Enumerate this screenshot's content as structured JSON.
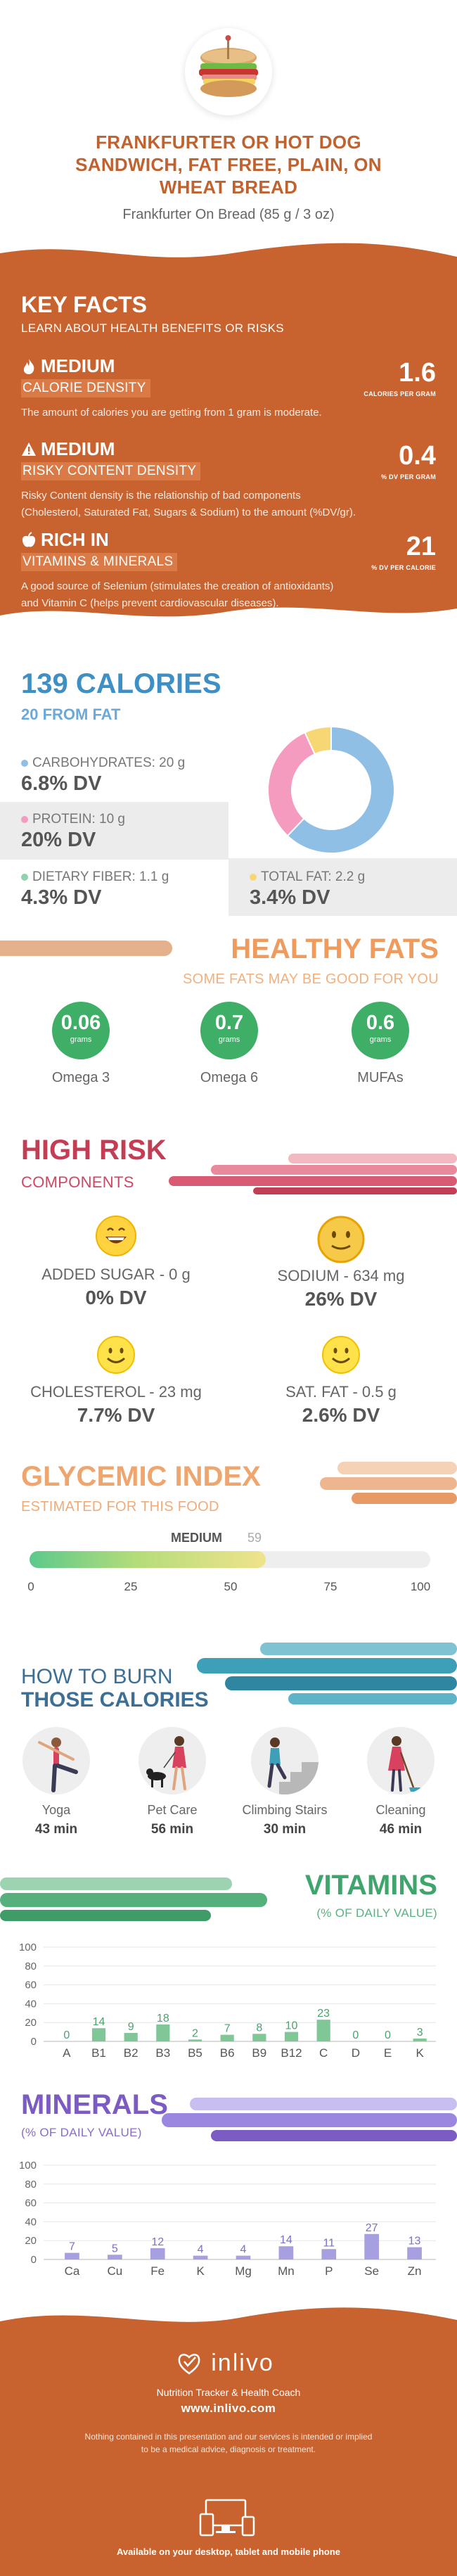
{
  "header": {
    "title_line1": "FRANKFURTER OR HOT DOG",
    "title_line2": "SANDWICH, FAT FREE, PLAIN, ON",
    "title_line3": "WHEAT BREAD",
    "serving": "Frankfurter On Bread (85 g / 3 oz)",
    "image_icon": "sandwich-image"
  },
  "key_facts": {
    "title": "KEY FACTS",
    "subtitle": "LEARN ABOUT HEALTH BENEFITS OR RISKS",
    "facts": [
      {
        "icon": "flame-icon",
        "level": "MEDIUM",
        "category": "CALORIE DENSITY",
        "value": "1.6",
        "unit": "CALORIES PER GRAM",
        "desc1": "The amount of calories you are getting from 1 gram is moderate.",
        "desc2": ""
      },
      {
        "icon": "warning-icon",
        "level": "MEDIUM",
        "category": "RISKY CONTENT DENSITY",
        "value": "0.4",
        "unit": "% DV PER GRAM",
        "desc1": "Risky Content density is the relationship of bad components",
        "desc2": "(Cholesterol, Saturated Fat, Sugars & Sodium) to the amount (%DV/gr)."
      },
      {
        "icon": "apple-icon",
        "level": "RICH  IN",
        "category": "VITAMINS & MINERALS",
        "value": "21",
        "unit": "% DV PER CALORIE",
        "desc1": "A good source of Selenium (stimulates the creation of antioxidants)",
        "desc2": "and Vitamin C (helps prevent cardiovascular diseases)."
      }
    ]
  },
  "calories": {
    "title": "139 CALORIES",
    "from_fat": "20 FROM FAT",
    "nutrients": [
      {
        "label": "CARBOHYDRATES: 20 g",
        "dv": "6.8% DV",
        "color": "#8fbfe4",
        "grams": 20
      },
      {
        "label": "PROTEIN: 10 g",
        "dv": "20% DV",
        "color": "#f59bbf",
        "grams": 10
      },
      {
        "label": "DIETARY FIBER: 1.1 g",
        "dv": "4.3% DV",
        "color": "#8fd1b0"
      },
      {
        "label": "TOTAL FAT: 2.2 g",
        "dv": "3.4% DV",
        "color": "#f7d774",
        "grams": 2.2
      }
    ]
  },
  "healthy_fats": {
    "title": "HEALTHY FATS",
    "subtitle": "SOME FATS MAY BE GOOD FOR YOU",
    "unit": "grams",
    "items": [
      {
        "name": "Omega 3",
        "value": "0.06"
      },
      {
        "name": "Omega 6",
        "value": "0.7"
      },
      {
        "name": "MUFAs",
        "value": "0.6"
      }
    ]
  },
  "high_risk": {
    "title": "HIGH RISK",
    "subtitle": "COMPONENTS",
    "items": [
      {
        "label": "ADDED SUGAR - 0 g",
        "dv": "0% DV",
        "icon": "happy-face-icon"
      },
      {
        "label": "SODIUM - 634 mg",
        "dv": "26% DV",
        "icon": "neutral-face-icon"
      },
      {
        "label": "CHOLESTEROL - 23 mg",
        "dv": "7.7% DV",
        "icon": "smile-face-icon"
      },
      {
        "label": "SAT. FAT - 0.5 g",
        "dv": "2.6% DV",
        "icon": "smile-face-icon"
      }
    ]
  },
  "glycemic": {
    "title": "GLYCEMIC INDEX",
    "subtitle": "ESTIMATED FOR THIS FOOD",
    "level": "MEDIUM",
    "value": "59",
    "value_num": 59,
    "ticks": [
      "0",
      "25",
      "50",
      "75",
      "100"
    ]
  },
  "burn": {
    "title1": "HOW TO BURN",
    "title2": "THOSE CALORIES",
    "activities": [
      {
        "name": "Yoga",
        "minutes": "43 min",
        "icon": "yoga-icon"
      },
      {
        "name": "Pet Care",
        "minutes": "56 min",
        "icon": "dog-walking-icon"
      },
      {
        "name": "Climbing Stairs",
        "minutes": "30 min",
        "icon": "stairs-icon"
      },
      {
        "name": "Cleaning",
        "minutes": "46 min",
        "icon": "cleaning-icon"
      }
    ]
  },
  "vitamins": {
    "title": "VITAMINS",
    "subtitle": "(% OF DAILY VALUE)"
  },
  "minerals": {
    "title": "MINERALS",
    "subtitle": "(% OF DAILY VALUE)"
  },
  "chart_data": [
    {
      "type": "bar",
      "categories": [
        "A",
        "B1",
        "B2",
        "B3",
        "B5",
        "B6",
        "B9",
        "B12",
        "C",
        "D",
        "E",
        "K"
      ],
      "values": [
        0,
        14,
        9,
        18,
        2,
        7,
        8,
        10,
        23,
        0,
        0,
        3
      ],
      "title": "VITAMINS",
      "subtitle": "(% OF DAILY VALUE)",
      "ylim": [
        0,
        100
      ],
      "yticks": [
        "0",
        "20",
        "40",
        "60",
        "80",
        "100"
      ],
      "color": "#7fc796",
      "label_color": "#4aa36d"
    },
    {
      "type": "bar",
      "categories": [
        "Ca",
        "Cu",
        "Fe",
        "K",
        "Mg",
        "Mn",
        "P",
        "Se",
        "Zn"
      ],
      "values": [
        7,
        5,
        12,
        4,
        4,
        14,
        11,
        27,
        13
      ],
      "title": "MINERALS",
      "subtitle": "(% OF DAILY VALUE)",
      "ylim": [
        0,
        100
      ],
      "yticks": [
        "0",
        "20",
        "40",
        "60",
        "80",
        "100"
      ],
      "color": "#a7a0e0",
      "label_color": "#7a70c9"
    }
  ],
  "footer": {
    "brand": "inlivo",
    "tagline": "Nutrition Tracker & Health Coach",
    "url": "www.inlivo.com",
    "disclaimer1": "Nothing contained in this presentation and our services is intended or implied",
    "disclaimer2": "to be a medical advice, diagnosis or treatment.",
    "available": "Available on your desktop, tablet and mobile phone"
  },
  "colors": {
    "brand_orange": "#c0622f",
    "key_facts_bg": "#c8632f",
    "calories_blue": "#3e8fc4",
    "healthy_green": "#3fae66",
    "risk_red": "#c33d55",
    "vitamins_green": "#3fa56c",
    "minerals_purple": "#7c5cc3"
  }
}
